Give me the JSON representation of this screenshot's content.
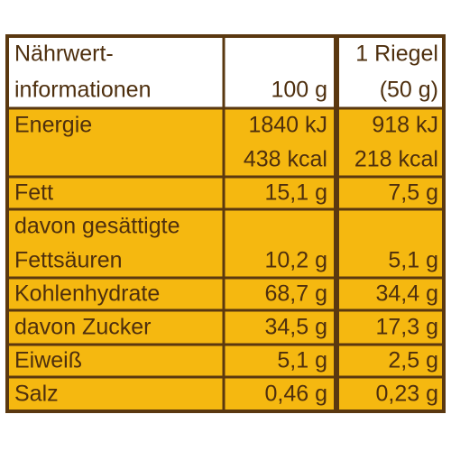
{
  "table": {
    "header": [
      [
        "Nährwert-",
        "informationen"
      ],
      [
        "100 g"
      ],
      [
        "1 Riegel",
        "(50 g)"
      ]
    ],
    "rows": [
      [
        [
          "Energie"
        ],
        [
          "1840 kJ",
          "438 kcal"
        ],
        [
          "918 kJ",
          "218 kcal"
        ]
      ],
      [
        [
          "Fett"
        ],
        [
          "15,1 g"
        ],
        [
          "7,5 g"
        ]
      ],
      [
        [
          "davon gesättigte",
          "Fettsäuren"
        ],
        [
          "10,2 g"
        ],
        [
          "5,1 g"
        ]
      ],
      [
        [
          "Kohlenhydrate"
        ],
        [
          "68,7 g"
        ],
        [
          "34,4 g"
        ]
      ],
      [
        [
          "davon Zucker"
        ],
        [
          "34,5 g"
        ],
        [
          "17,3 g"
        ]
      ],
      [
        [
          "Eiweiß"
        ],
        [
          "5,1 g"
        ],
        [
          "2,5 g"
        ]
      ],
      [
        [
          "Salz"
        ],
        [
          "0,46 g"
        ],
        [
          "0,23 g"
        ]
      ]
    ]
  }
}
